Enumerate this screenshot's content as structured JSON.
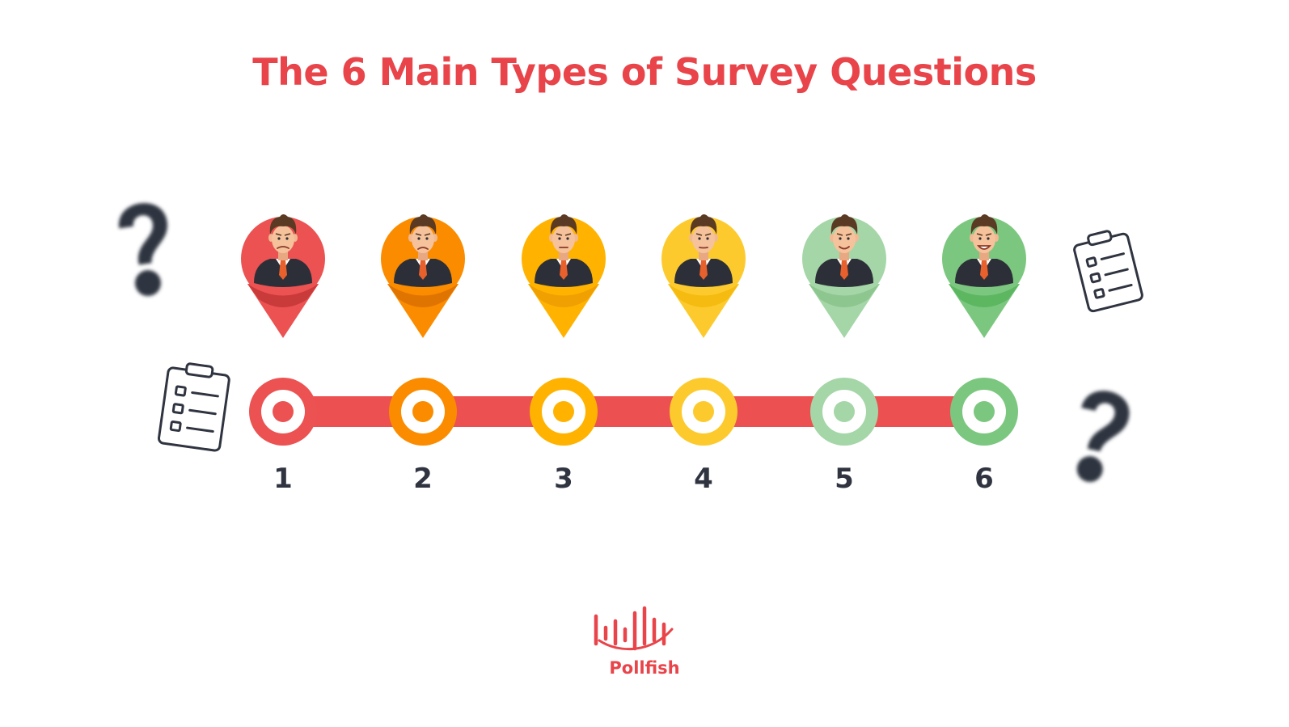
{
  "title": "The 6 Main Types of Survey Questions",
  "colors": {
    "title": "#e8444a",
    "track": "#ec5050",
    "number": "#2f3440",
    "decor": "#2f3440",
    "brand": "#e8444a"
  },
  "steps": [
    {
      "number": "1",
      "color": "#ec5252",
      "dark": "#c93a3a",
      "mouth": "grimace"
    },
    {
      "number": "2",
      "color": "#fb8c00",
      "dark": "#e07400",
      "mouth": "frown"
    },
    {
      "number": "3",
      "color": "#ffb300",
      "dark": "#f0a000",
      "mouth": "flat"
    },
    {
      "number": "4",
      "color": "#fdca2e",
      "dark": "#f5bb10",
      "mouth": "neutral"
    },
    {
      "number": "5",
      "color": "#a5d6a7",
      "dark": "#8ec690",
      "mouth": "smile"
    },
    {
      "number": "6",
      "color": "#7cc77f",
      "dark": "#5db761",
      "mouth": "grin"
    }
  ],
  "decor_icons": [
    "question-mark-icon",
    "checklist-icon",
    "checklist-icon",
    "question-mark-icon"
  ],
  "brand": {
    "name": "Pollfish",
    "logo_icon": "pollfish-logo-icon"
  }
}
